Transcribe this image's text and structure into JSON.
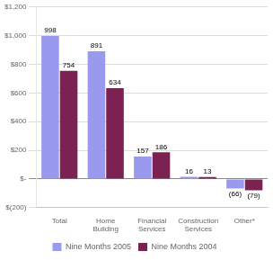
{
  "chart_data": {
    "type": "bar",
    "categories": [
      "Total",
      "Home\nBuilding",
      "Financial\nServices",
      "Construction\nServices",
      "Other*"
    ],
    "series": [
      {
        "name": "Nine Months 2005",
        "color": "#9999ee",
        "values": [
          998,
          891,
          157,
          16,
          -66
        ],
        "value_labels": [
          "998",
          "891",
          "157",
          "16",
          "(66)"
        ]
      },
      {
        "name": "Nine Months 2004",
        "color": "#7b2252",
        "values": [
          754,
          634,
          186,
          13,
          -79
        ],
        "value_labels": [
          "754",
          "634",
          "186",
          "13",
          "(79)"
        ]
      }
    ],
    "ylim": [
      -200,
      1200
    ],
    "yticks": [
      {
        "value": -200,
        "label": "$(200)"
      },
      {
        "value": 0,
        "label": "$-"
      },
      {
        "value": 200,
        "label": "$200"
      },
      {
        "value": 400,
        "label": "$400"
      },
      {
        "value": 600,
        "label": "$600"
      },
      {
        "value": 800,
        "label": "$800"
      },
      {
        "value": 1000,
        "label": "$1,000"
      },
      {
        "value": 1200,
        "label": "$1,200"
      }
    ],
    "grid": true,
    "legend": "bottom",
    "data_labels": true
  }
}
